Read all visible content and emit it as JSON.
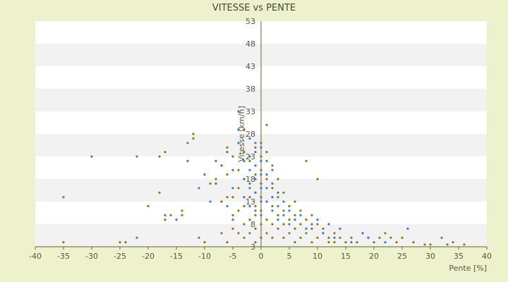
{
  "chart_data": {
    "type": "scatter",
    "title": "VITESSE vs PENTE",
    "xlabel": "Pente [%]",
    "ylabel": "Vitesse [km/h]",
    "xlim": [
      -40,
      40
    ],
    "ylim": [
      3,
      53
    ],
    "xticks": [
      "-40",
      "-35",
      "-30",
      "-25",
      "-20",
      "-15",
      "-10",
      "-5",
      "0",
      "5",
      "10",
      "15",
      "20",
      "25",
      "30",
      "35",
      "40"
    ],
    "yticks": [
      "3",
      "8",
      "13",
      "18",
      "23",
      "28",
      "33",
      "38",
      "43",
      "48",
      "53"
    ],
    "grid": "horizontal-bands",
    "colors": {
      "background": "#eef2cc",
      "band_light": "#ffffff",
      "band_dark": "#f2f2f2",
      "axis": "#666633",
      "series_a": "#8a7a10",
      "series_b": "#2f7fd6"
    },
    "series": [
      {
        "color": "#8a7a10",
        "points": [
          [
            -35,
            14
          ],
          [
            -35,
            4
          ],
          [
            -30,
            23
          ],
          [
            -25,
            4
          ],
          [
            -24,
            4
          ],
          [
            -22,
            5
          ],
          [
            -22,
            23
          ],
          [
            -20,
            12
          ],
          [
            -18,
            15
          ],
          [
            -18,
            23
          ],
          [
            -17,
            24
          ],
          [
            -17,
            9
          ],
          [
            -16,
            10
          ],
          [
            -14,
            10
          ],
          [
            -14,
            11
          ],
          [
            -13,
            26
          ],
          [
            -12,
            28
          ],
          [
            -12,
            27
          ],
          [
            -11,
            5
          ],
          [
            -10,
            4
          ],
          [
            -9,
            17
          ],
          [
            -8,
            22
          ],
          [
            -8,
            18
          ],
          [
            -7,
            21
          ],
          [
            -7,
            13
          ],
          [
            -7,
            6
          ],
          [
            -6,
            4
          ],
          [
            -6,
            14
          ],
          [
            -6,
            19
          ],
          [
            -6,
            25
          ],
          [
            -5,
            23
          ],
          [
            -5,
            10
          ],
          [
            -5,
            7
          ],
          [
            -5,
            14
          ],
          [
            -4,
            26
          ],
          [
            -4,
            20
          ],
          [
            -4,
            16
          ],
          [
            -4,
            6
          ],
          [
            -4,
            11
          ],
          [
            -3,
            24
          ],
          [
            -3,
            18
          ],
          [
            -3,
            12
          ],
          [
            -3,
            8
          ],
          [
            -3,
            5
          ],
          [
            -3,
            29
          ],
          [
            -2,
            22
          ],
          [
            -2,
            17
          ],
          [
            -2,
            14
          ],
          [
            -2,
            9
          ],
          [
            -2,
            6
          ],
          [
            -2,
            27
          ],
          [
            -1,
            25
          ],
          [
            -1,
            21
          ],
          [
            -1,
            19
          ],
          [
            -1,
            15
          ],
          [
            -1,
            12
          ],
          [
            -1,
            10
          ],
          [
            -1,
            7
          ],
          [
            -1,
            4
          ],
          [
            0,
            26
          ],
          [
            0,
            23
          ],
          [
            0,
            20
          ],
          [
            0,
            17
          ],
          [
            0,
            14
          ],
          [
            0,
            11
          ],
          [
            0,
            8
          ],
          [
            0,
            5
          ],
          [
            1,
            30
          ],
          [
            1,
            24
          ],
          [
            1,
            18
          ],
          [
            1,
            13
          ],
          [
            1,
            9
          ],
          [
            1,
            6
          ],
          [
            2,
            21
          ],
          [
            2,
            16
          ],
          [
            2,
            12
          ],
          [
            2,
            8
          ],
          [
            2,
            5
          ],
          [
            3,
            18
          ],
          [
            3,
            14
          ],
          [
            3,
            10
          ],
          [
            3,
            7
          ],
          [
            4,
            15
          ],
          [
            4,
            11
          ],
          [
            4,
            8
          ],
          [
            4,
            5
          ],
          [
            5,
            12
          ],
          [
            5,
            9
          ],
          [
            5,
            6
          ],
          [
            6,
            13
          ],
          [
            6,
            10
          ],
          [
            6,
            7
          ],
          [
            6,
            4
          ],
          [
            7,
            11
          ],
          [
            7,
            8
          ],
          [
            7,
            5
          ],
          [
            8,
            22
          ],
          [
            8,
            9
          ],
          [
            8,
            6
          ],
          [
            9,
            10
          ],
          [
            9,
            7
          ],
          [
            9,
            4
          ],
          [
            10,
            18
          ],
          [
            10,
            8
          ],
          [
            10,
            5
          ],
          [
            11,
            7
          ],
          [
            11,
            6
          ],
          [
            12,
            5
          ],
          [
            12,
            4
          ],
          [
            13,
            6
          ],
          [
            13,
            4
          ],
          [
            14,
            5
          ],
          [
            15,
            4
          ],
          [
            16,
            5
          ],
          [
            17,
            4
          ],
          [
            18,
            6
          ],
          [
            19,
            5
          ],
          [
            20,
            4
          ],
          [
            21,
            5
          ],
          [
            22,
            6
          ],
          [
            23,
            5
          ],
          [
            24,
            4
          ],
          [
            25,
            5
          ],
          [
            27,
            4
          ],
          [
            29,
            3.5
          ],
          [
            30,
            3.5
          ],
          [
            32,
            5
          ],
          [
            33,
            3.5
          ],
          [
            34,
            4
          ],
          [
            36,
            3.5
          ]
        ]
      },
      {
        "color": "#2f7fd6",
        "points": [
          [
            -17,
            10
          ],
          [
            -15,
            9
          ],
          [
            -13,
            22
          ],
          [
            -11,
            16
          ],
          [
            -10,
            19
          ],
          [
            -9,
            13
          ],
          [
            -8,
            17
          ],
          [
            -7,
            21
          ],
          [
            -6,
            24
          ],
          [
            -6,
            12
          ],
          [
            -5,
            20
          ],
          [
            -5,
            16
          ],
          [
            -5,
            9
          ],
          [
            -4,
            33
          ],
          [
            -4,
            29
          ],
          [
            -4,
            26
          ],
          [
            -3,
            22
          ],
          [
            -3,
            18
          ],
          [
            -3,
            14
          ],
          [
            -2,
            27
          ],
          [
            -2,
            23
          ],
          [
            -2,
            20
          ],
          [
            -2,
            16
          ],
          [
            -2,
            12
          ],
          [
            -1,
            26
          ],
          [
            -1,
            24
          ],
          [
            -1,
            21
          ],
          [
            -1,
            18
          ],
          [
            -1,
            15
          ],
          [
            -1,
            11
          ],
          [
            0,
            25
          ],
          [
            0,
            22
          ],
          [
            0,
            19
          ],
          [
            0,
            16
          ],
          [
            0,
            13
          ],
          [
            0,
            10
          ],
          [
            1,
            22
          ],
          [
            1,
            19
          ],
          [
            1,
            16
          ],
          [
            1,
            13
          ],
          [
            2,
            20
          ],
          [
            2,
            17
          ],
          [
            2,
            14
          ],
          [
            2,
            11
          ],
          [
            3,
            15
          ],
          [
            3,
            12
          ],
          [
            3,
            9
          ],
          [
            4,
            13
          ],
          [
            4,
            10
          ],
          [
            5,
            11
          ],
          [
            5,
            8
          ],
          [
            6,
            9
          ],
          [
            7,
            10
          ],
          [
            8,
            7
          ],
          [
            9,
            8
          ],
          [
            10,
            9
          ],
          [
            11,
            6
          ],
          [
            12,
            8
          ],
          [
            13,
            5
          ],
          [
            14,
            7
          ],
          [
            16,
            4
          ],
          [
            18,
            6
          ],
          [
            19,
            5
          ],
          [
            22,
            4
          ],
          [
            26,
            7
          ]
        ]
      }
    ]
  }
}
